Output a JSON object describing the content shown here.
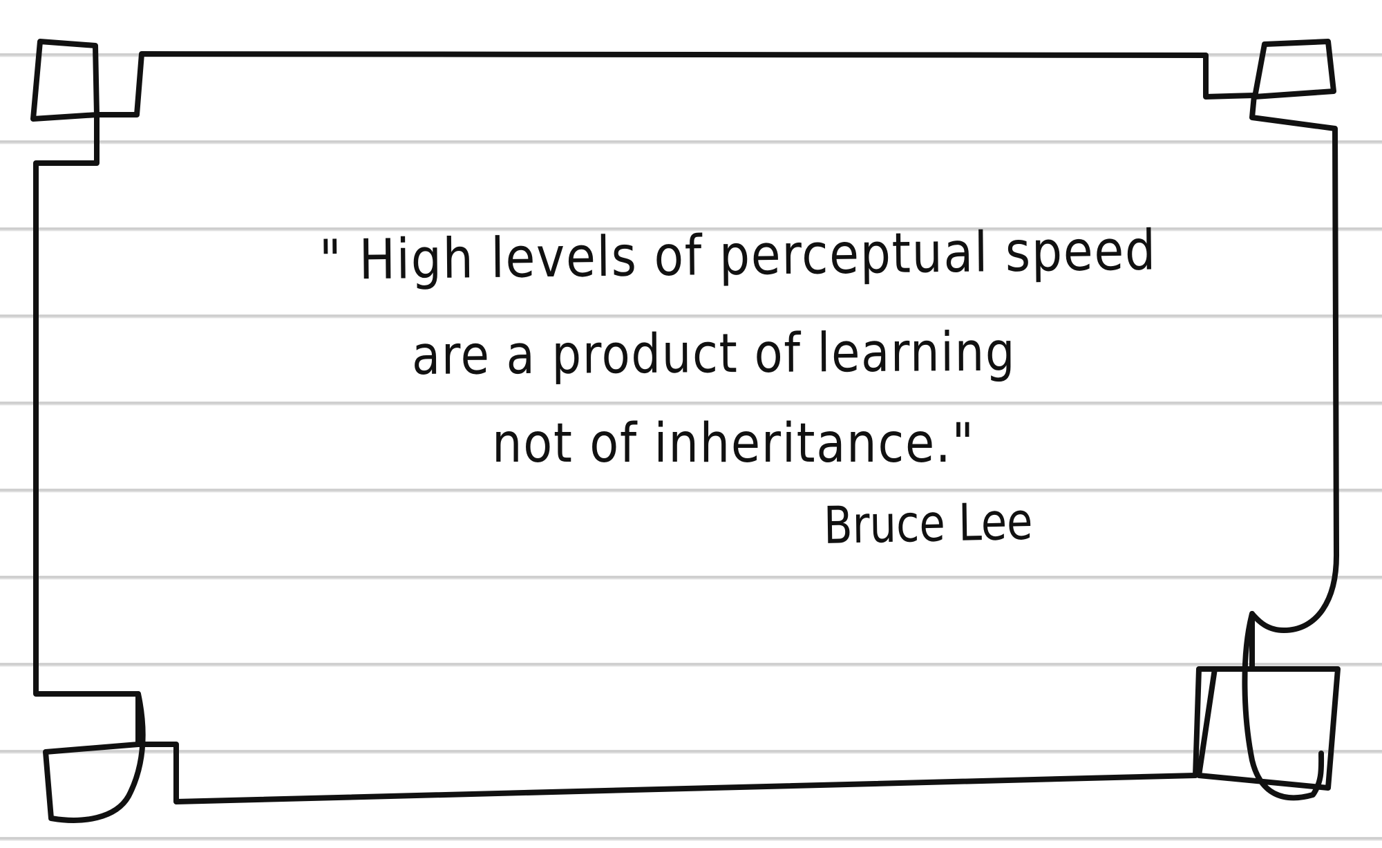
{
  "quote": {
    "lines": [
      "\" High levels of perceptual speed",
      "are a product of learning",
      "not of inheritance.\""
    ],
    "author": "Bruce Lee"
  },
  "colors": {
    "ink": "#111111",
    "paper": "#ffffff",
    "ruled_line": "#d0d0d0"
  }
}
